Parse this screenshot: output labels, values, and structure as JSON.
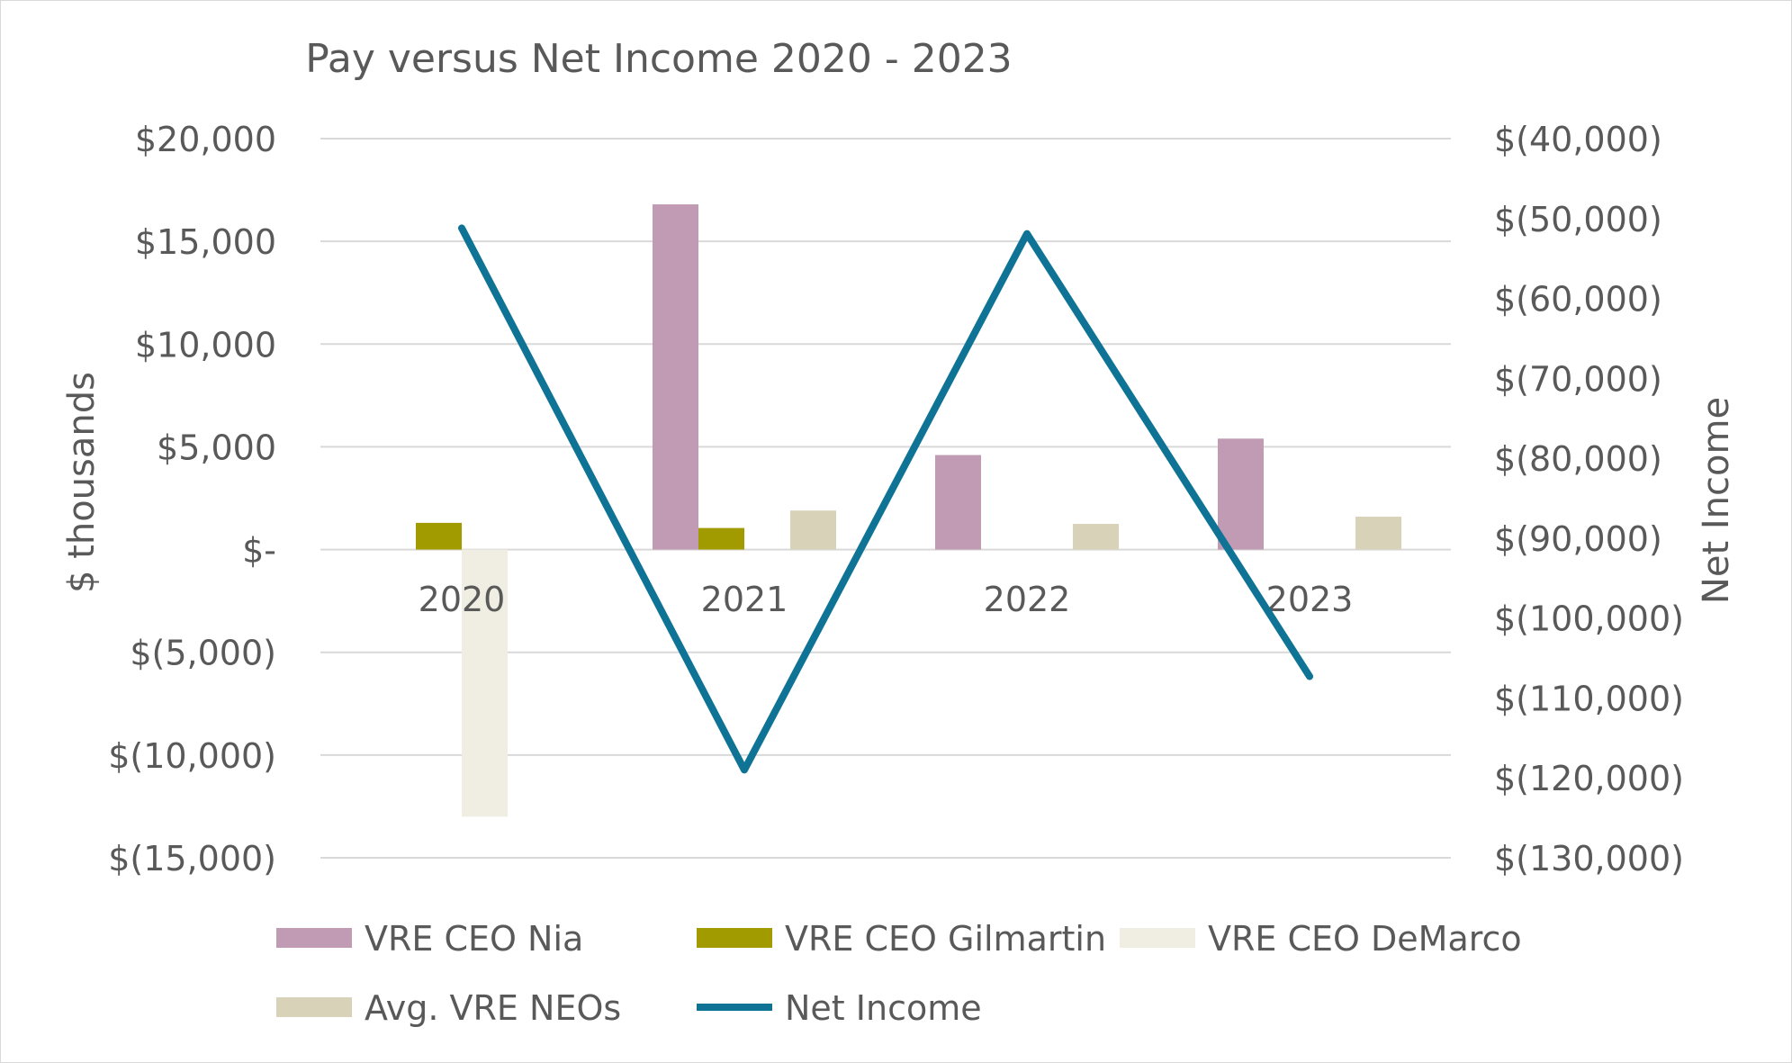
{
  "chart_data": {
    "type": "bar",
    "title": "Pay versus Net Income 2020 - 2023",
    "categories": [
      "2020",
      "2021",
      "2022",
      "2023"
    ],
    "ylabel": "$ thousands",
    "y2label": "Net Income",
    "ylim": [
      -15000,
      20000
    ],
    "y2lim": [
      -130000,
      -40000
    ],
    "y_ticks": [
      20000,
      15000,
      10000,
      5000,
      0,
      -5000,
      -10000,
      -15000
    ],
    "y_tick_labels": [
      "$20,000",
      "$15,000",
      "$10,000",
      "$5,000",
      "$-",
      "$(5,000)",
      "$(10,000)",
      "$(15,000)"
    ],
    "y2_ticks": [
      -40000,
      -50000,
      -60000,
      -70000,
      -80000,
      -90000,
      -100000,
      -110000,
      -120000,
      -130000
    ],
    "y2_tick_labels": [
      "$(40,000)",
      "$(50,000)",
      "$(60,000)",
      "$(70,000)",
      "$(80,000)",
      "$(90,000)",
      "$(100,000)",
      "$(110,000)",
      "$(120,000)",
      "$(130,000)"
    ],
    "grid": true,
    "legend_position": "bottom",
    "series": [
      {
        "name": "VRE CEO Nia",
        "kind": "bar",
        "axis": "left",
        "color": "#c09bb3",
        "values": [
          null,
          16800,
          4600,
          5400
        ]
      },
      {
        "name": "VRE CEO Gilmartin",
        "kind": "bar",
        "axis": "left",
        "color": "#a19b00",
        "values": [
          1300,
          1050,
          null,
          null
        ]
      },
      {
        "name": "VRE CEO DeMarco",
        "kind": "bar",
        "axis": "left",
        "color": "#f0eee3",
        "values": [
          -13000,
          null,
          null,
          null
        ]
      },
      {
        "name": "Avg. VRE NEOs",
        "kind": "bar",
        "axis": "left",
        "color": "#d8d3b8",
        "values": [
          null,
          1900,
          1250,
          1600
        ]
      },
      {
        "name": "Net Income",
        "kind": "line",
        "axis": "right",
        "color": "#0f7396",
        "values": [
          -51200,
          -119000,
          -51900,
          -107300
        ]
      }
    ]
  }
}
